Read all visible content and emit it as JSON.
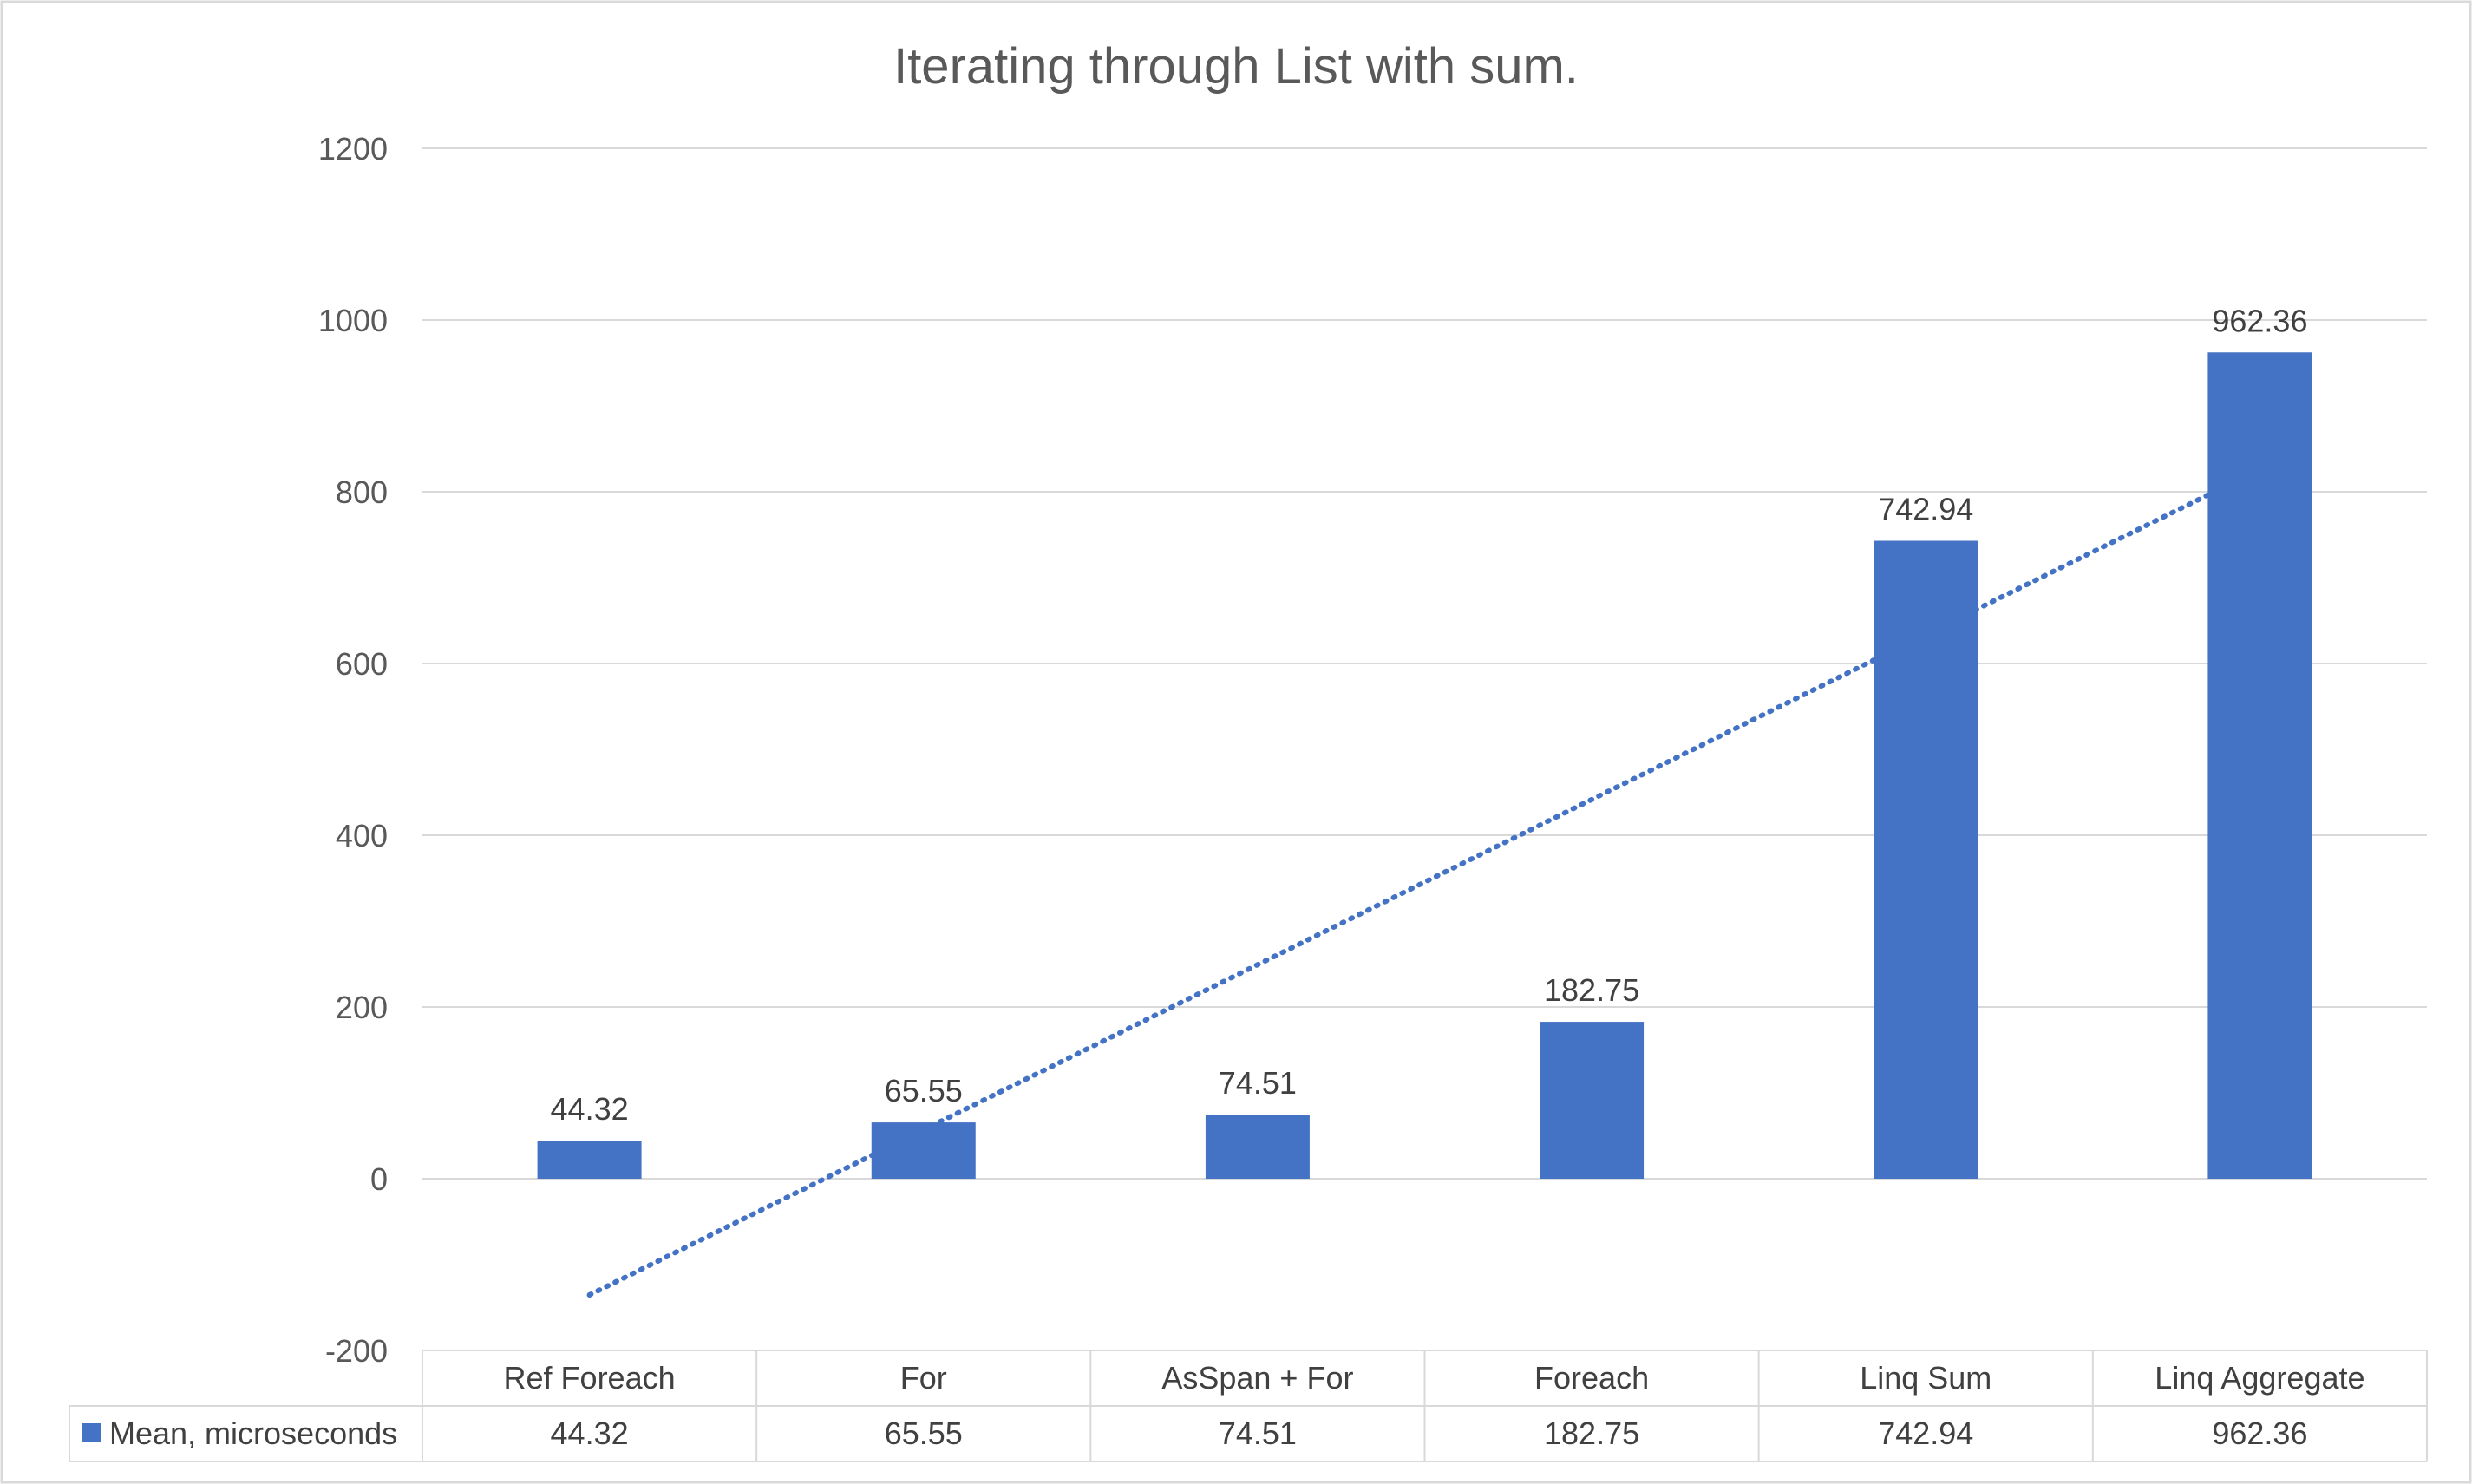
{
  "chart_data": {
    "type": "bar",
    "title": "Iterating through List with sum.",
    "categories": [
      "Ref Foreach",
      "For",
      "AsSpan + For",
      "Foreach",
      "Linq Sum",
      "Linq Aggregate"
    ],
    "series": [
      {
        "name": "Mean, microseconds",
        "values": [
          44.32,
          65.55,
          74.51,
          182.75,
          742.94,
          962.36
        ],
        "value_labels": [
          "44.32",
          "65.55",
          "74.51",
          "182.75",
          "742.94",
          "962.36"
        ],
        "color": "#4472c4"
      }
    ],
    "ylim": [
      -200,
      1200
    ],
    "yticks": [
      -200,
      0,
      200,
      400,
      600,
      800,
      1000,
      1200
    ],
    "grid": true,
    "trendline": {
      "type": "linear",
      "style": "dotted",
      "color": "#4472c4"
    },
    "data_table": true,
    "legend": "data-table-left"
  }
}
